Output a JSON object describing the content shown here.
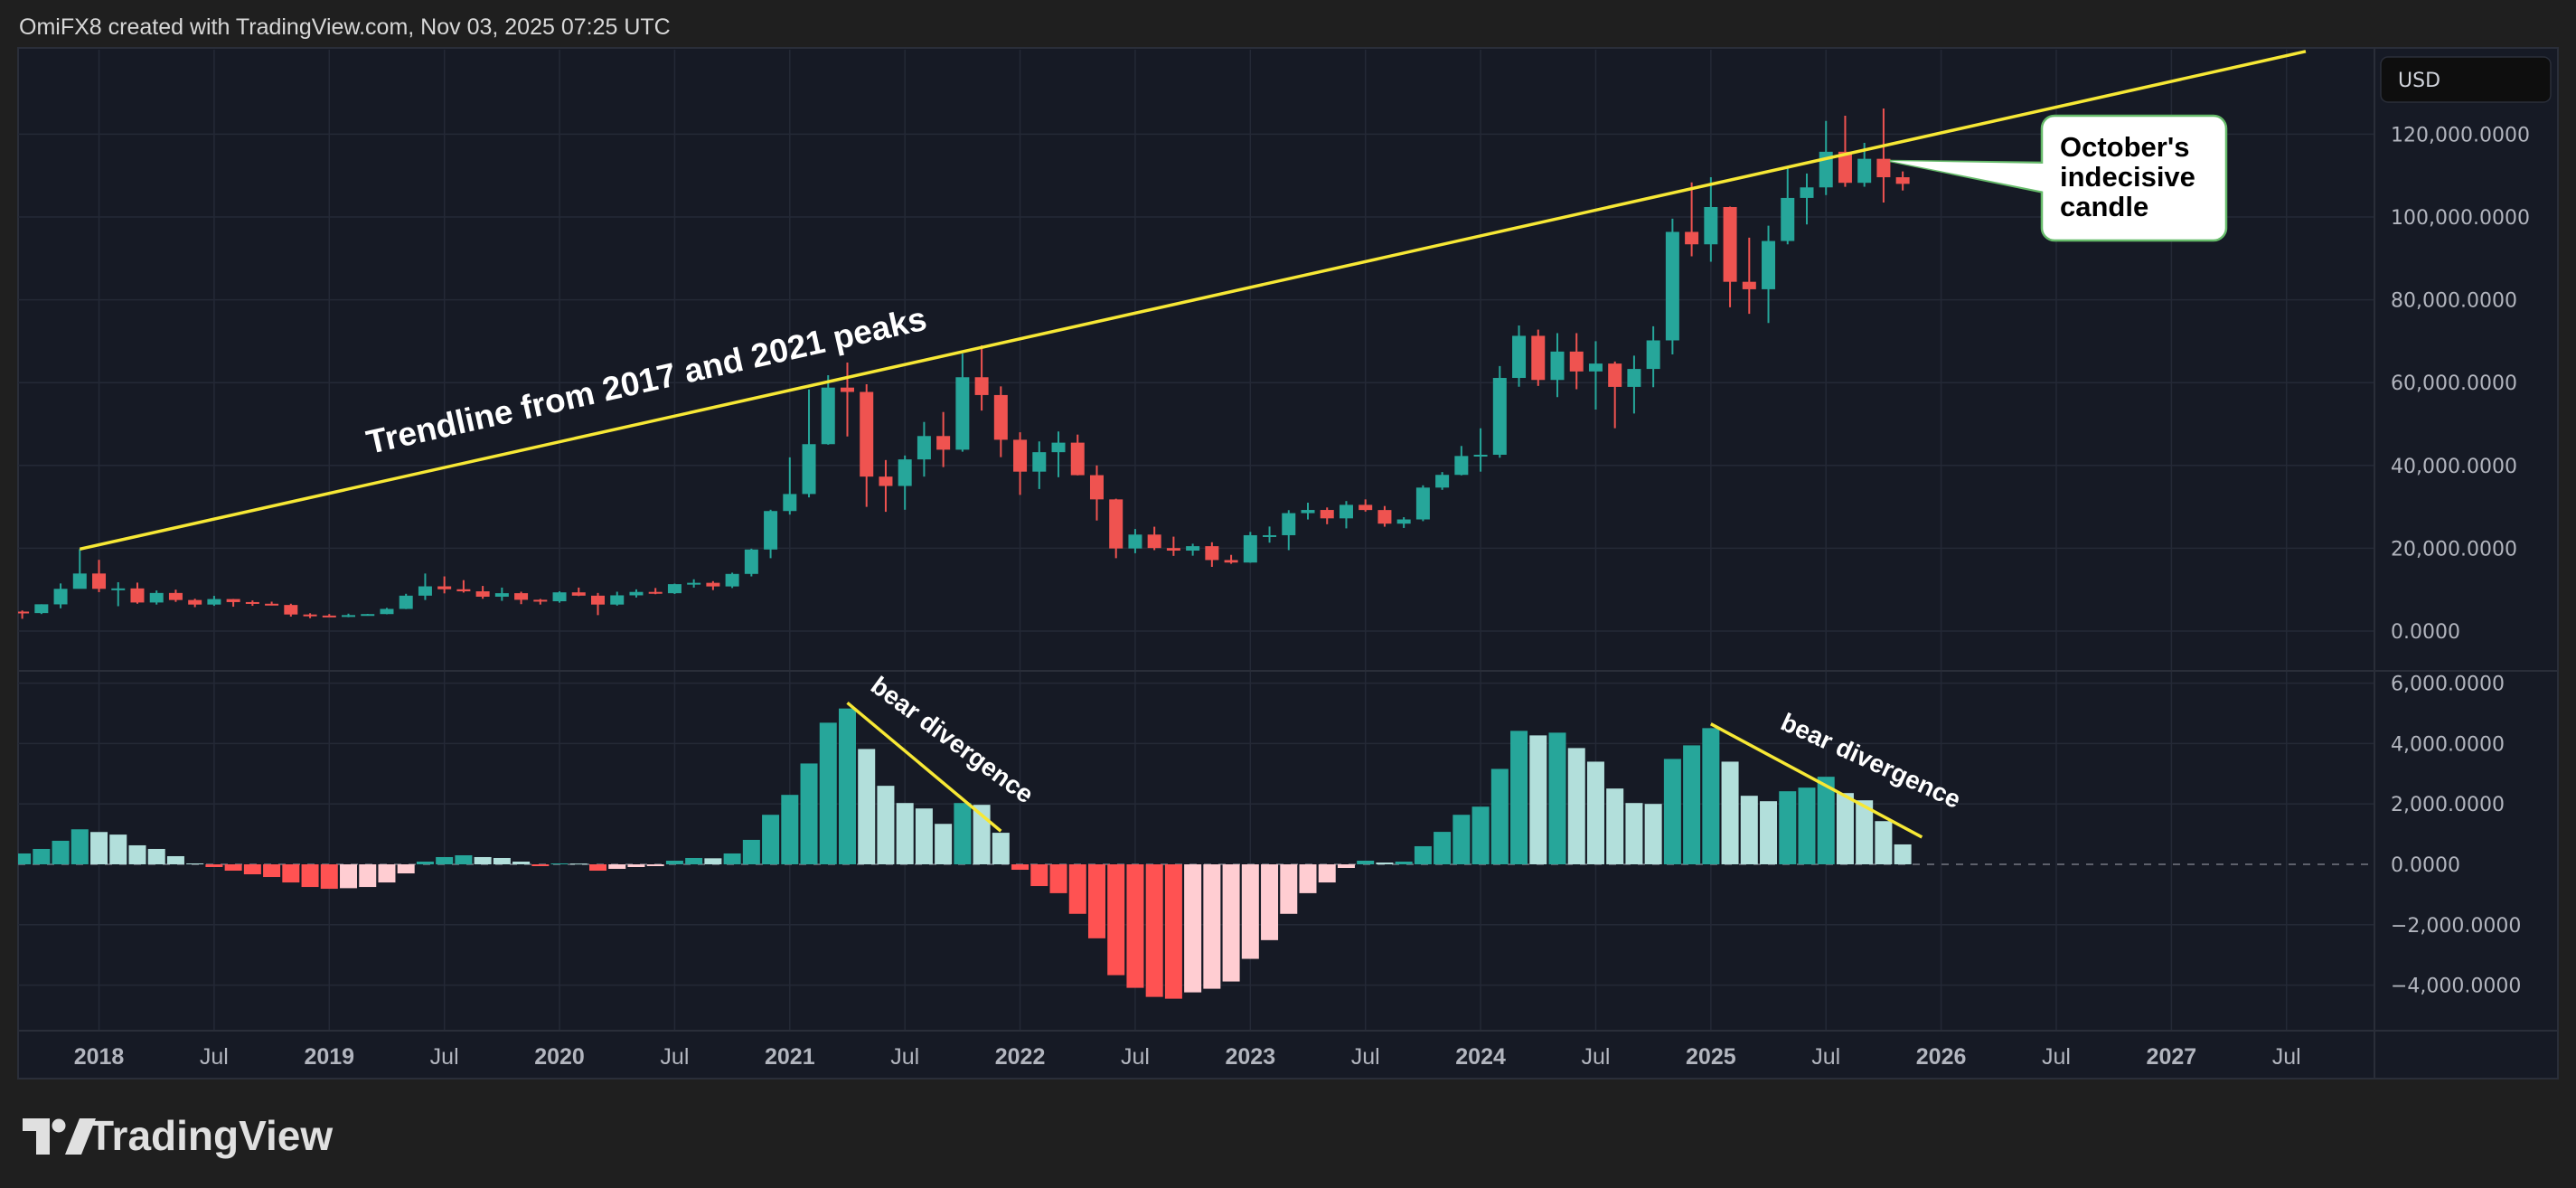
{
  "header": {
    "text": "OmiFX8 created with TradingView.com, Nov 03, 2025 07:25 UTC"
  },
  "logo": {
    "text": "TradingView"
  },
  "colors": {
    "background": "#161a25",
    "page": "#1f1f1f",
    "grid": "#242936",
    "up": "#26a69a",
    "down": "#ef5350",
    "hist_up_strong": "#26a69a",
    "hist_up_weak": "#b2dfdb",
    "hist_down_strong": "#ff5252",
    "hist_down_weak": "#ffcdd2",
    "trendline": "#f7e835",
    "callout_border": "#66bb6a"
  },
  "price_axis": {
    "currency": "USD",
    "labels": [
      {
        "value": 120000,
        "text": "120,000.0000"
      },
      {
        "value": 100000,
        "text": "100,000.0000"
      },
      {
        "value": 80000,
        "text": "80,000.0000"
      },
      {
        "value": 60000,
        "text": "60,000.0000"
      },
      {
        "value": 40000,
        "text": "40,000.0000"
      },
      {
        "value": 20000,
        "text": "20,000.0000"
      },
      {
        "value": 0,
        "text": "0.0000"
      }
    ]
  },
  "indicator_axis": {
    "labels": [
      {
        "value": 6000,
        "text": "6,000.0000"
      },
      {
        "value": 4000,
        "text": "4,000.0000"
      },
      {
        "value": 2000,
        "text": "2,000.0000"
      },
      {
        "value": 0,
        "text": "0.0000"
      },
      {
        "value": -2000,
        "text": "−2,000.0000"
      },
      {
        "value": -4000,
        "text": "−4,000.0000"
      }
    ]
  },
  "time_axis": {
    "labels": [
      {
        "date": "2018-01",
        "text": "2018",
        "bold": true
      },
      {
        "date": "2018-07",
        "text": "Jul",
        "bold": false
      },
      {
        "date": "2019-01",
        "text": "2019",
        "bold": true
      },
      {
        "date": "2019-07",
        "text": "Jul",
        "bold": false
      },
      {
        "date": "2020-01",
        "text": "2020",
        "bold": true
      },
      {
        "date": "2020-07",
        "text": "Jul",
        "bold": false
      },
      {
        "date": "2021-01",
        "text": "2021",
        "bold": true
      },
      {
        "date": "2021-07",
        "text": "Jul",
        "bold": false
      },
      {
        "date": "2022-01",
        "text": "2022",
        "bold": true
      },
      {
        "date": "2022-07",
        "text": "Jul",
        "bold": false
      },
      {
        "date": "2023-01",
        "text": "2023",
        "bold": true
      },
      {
        "date": "2023-07",
        "text": "Jul",
        "bold": false
      },
      {
        "date": "2024-01",
        "text": "2024",
        "bold": true
      },
      {
        "date": "2024-07",
        "text": "Jul",
        "bold": false
      },
      {
        "date": "2025-01",
        "text": "2025",
        "bold": true
      },
      {
        "date": "2025-07",
        "text": "Jul",
        "bold": false
      },
      {
        "date": "2026-01",
        "text": "2026",
        "bold": true
      },
      {
        "date": "2026-07",
        "text": "Jul",
        "bold": false
      },
      {
        "date": "2027-01",
        "text": "2027",
        "bold": true
      },
      {
        "date": "2027-07",
        "text": "Jul",
        "bold": false
      }
    ]
  },
  "annotations": {
    "trendline_label": "Trendline from 2017 and 2021 peaks",
    "callout_lines": [
      "October's",
      "indecisive",
      "candle"
    ],
    "bear_divergence_1": "bear divergence",
    "bear_divergence_2": "bear divergence"
  },
  "chart_data": [
    {
      "type": "candlestick",
      "interval": "monthly",
      "columns": [
        "date",
        "open",
        "high",
        "low",
        "close"
      ],
      "ylim": [
        0,
        140000
      ],
      "grid": true,
      "candles": [
        [
          "2017-09",
          4700,
          4980,
          2970,
          4340
        ],
        [
          "2017-10",
          4340,
          6470,
          4110,
          6470
        ],
        [
          "2017-11",
          6450,
          11500,
          5500,
          10200
        ],
        [
          "2017-12",
          10200,
          19800,
          10400,
          13900
        ],
        [
          "2018-01",
          13900,
          17200,
          9400,
          10200
        ],
        [
          "2018-02",
          10200,
          11800,
          6000,
          10300
        ],
        [
          "2018-03",
          10300,
          11700,
          6600,
          6900
        ],
        [
          "2018-04",
          6900,
          9800,
          6400,
          9200
        ],
        [
          "2018-05",
          9200,
          10000,
          7050,
          7500
        ],
        [
          "2018-06",
          7500,
          7800,
          5780,
          6400
        ],
        [
          "2018-07",
          6400,
          8500,
          6100,
          7730
        ],
        [
          "2018-08",
          7730,
          7760,
          5880,
          7000
        ],
        [
          "2018-09",
          7000,
          7400,
          6100,
          6600
        ],
        [
          "2018-10",
          6600,
          7100,
          6200,
          6300
        ],
        [
          "2018-11",
          6300,
          6600,
          3500,
          4000
        ],
        [
          "2018-12",
          4000,
          4300,
          3130,
          3740
        ],
        [
          "2019-01",
          3740,
          4100,
          3400,
          3460
        ],
        [
          "2019-02",
          3460,
          4200,
          3350,
          3850
        ],
        [
          "2019-03",
          3850,
          4150,
          3700,
          4100
        ],
        [
          "2019-04",
          4100,
          5600,
          4050,
          5350
        ],
        [
          "2019-05",
          5350,
          9000,
          5300,
          8550
        ],
        [
          "2019-06",
          8550,
          13900,
          7500,
          10800
        ],
        [
          "2019-07",
          10800,
          13200,
          9100,
          10100
        ],
        [
          "2019-08",
          10100,
          12300,
          9300,
          9600
        ],
        [
          "2019-09",
          9600,
          10900,
          7800,
          8300
        ],
        [
          "2019-10",
          8300,
          10500,
          7300,
          9150
        ],
        [
          "2019-11",
          9150,
          9500,
          6500,
          7550
        ],
        [
          "2019-12",
          7550,
          7750,
          6400,
          7200
        ],
        [
          "2020-01",
          7200,
          9600,
          6850,
          9350
        ],
        [
          "2020-02",
          9350,
          10500,
          8450,
          8550
        ],
        [
          "2020-03",
          8550,
          9200,
          3850,
          6400
        ],
        [
          "2020-04",
          6400,
          9500,
          6150,
          8630
        ],
        [
          "2020-05",
          8630,
          10070,
          8100,
          9450
        ],
        [
          "2020-06",
          9450,
          10400,
          8900,
          9140
        ],
        [
          "2020-07",
          9140,
          11450,
          8950,
          11330
        ],
        [
          "2020-08",
          11330,
          12500,
          10500,
          11650
        ],
        [
          "2020-09",
          11650,
          12050,
          9900,
          10780
        ],
        [
          "2020-10",
          10780,
          14100,
          10400,
          13800
        ],
        [
          "2020-11",
          13800,
          19900,
          13200,
          19700
        ],
        [
          "2020-12",
          19700,
          29300,
          17600,
          28990
        ],
        [
          "2021-01",
          28990,
          41950,
          28130,
          33100
        ],
        [
          "2021-02",
          33100,
          58350,
          32300,
          45140
        ],
        [
          "2021-03",
          45140,
          61800,
          45000,
          58800
        ],
        [
          "2021-04",
          58800,
          64850,
          47000,
          57750
        ],
        [
          "2021-05",
          57750,
          59600,
          30000,
          37300
        ],
        [
          "2021-06",
          37300,
          41300,
          28800,
          35040
        ],
        [
          "2021-07",
          35040,
          42400,
          29300,
          41460
        ],
        [
          "2021-08",
          41460,
          50500,
          37300,
          47100
        ],
        [
          "2021-09",
          47100,
          52900,
          39600,
          43800
        ],
        [
          "2021-10",
          43800,
          67000,
          43300,
          61300
        ],
        [
          "2021-11",
          61300,
          69000,
          53250,
          57000
        ],
        [
          "2021-12",
          57000,
          59100,
          42000,
          46200
        ],
        [
          "2022-01",
          46200,
          48000,
          32900,
          38500
        ],
        [
          "2022-02",
          38500,
          45800,
          34300,
          43200
        ],
        [
          "2022-03",
          43200,
          48200,
          37150,
          45500
        ],
        [
          "2022-04",
          45500,
          47450,
          37600,
          37650
        ],
        [
          "2022-05",
          37650,
          40000,
          26700,
          31800
        ],
        [
          "2022-06",
          31800,
          31950,
          17600,
          19950
        ],
        [
          "2022-07",
          19950,
          24650,
          18800,
          23300
        ],
        [
          "2022-08",
          23300,
          25200,
          19550,
          20050
        ],
        [
          "2022-09",
          20050,
          22800,
          18150,
          19430
        ],
        [
          "2022-10",
          19430,
          21100,
          18200,
          20500
        ],
        [
          "2022-11",
          20500,
          21450,
          15500,
          17150
        ],
        [
          "2022-12",
          17150,
          18400,
          16250,
          16550
        ],
        [
          "2023-01",
          16550,
          23950,
          16500,
          23150
        ],
        [
          "2023-02",
          23150,
          25250,
          21350,
          23150
        ],
        [
          "2023-03",
          23150,
          29200,
          19550,
          28480
        ],
        [
          "2023-04",
          28480,
          31000,
          26950,
          29250
        ],
        [
          "2023-05",
          29250,
          29850,
          25800,
          27220
        ],
        [
          "2023-06",
          27220,
          31400,
          24800,
          30480
        ],
        [
          "2023-07",
          30480,
          31800,
          28850,
          29230
        ],
        [
          "2023-08",
          29230,
          30200,
          25200,
          25940
        ],
        [
          "2023-09",
          25940,
          27500,
          24900,
          26960
        ],
        [
          "2023-10",
          26960,
          35200,
          26550,
          34650
        ],
        [
          "2023-11",
          34650,
          38400,
          34100,
          37720
        ],
        [
          "2023-12",
          37720,
          44700,
          37600,
          42280
        ],
        [
          "2024-01",
          42280,
          48970,
          38500,
          42580
        ],
        [
          "2024-02",
          42580,
          64000,
          41880,
          61130
        ],
        [
          "2024-03",
          61130,
          73800,
          59000,
          71300
        ],
        [
          "2024-04",
          71300,
          72800,
          59200,
          60640
        ],
        [
          "2024-05",
          60640,
          71950,
          56500,
          67500
        ],
        [
          "2024-06",
          67500,
          71950,
          58400,
          62700
        ],
        [
          "2024-07",
          62700,
          70000,
          53500,
          64600
        ],
        [
          "2024-08",
          64600,
          65100,
          49000,
          58970
        ],
        [
          "2024-09",
          58970,
          66500,
          52550,
          63300
        ],
        [
          "2024-10",
          63300,
          73600,
          58900,
          70200
        ],
        [
          "2024-11",
          70200,
          99600,
          66800,
          96400
        ],
        [
          "2024-12",
          96400,
          108350,
          90500,
          93400
        ],
        [
          "2025-01",
          93400,
          109600,
          89200,
          102400
        ],
        [
          "2025-02",
          102400,
          102500,
          78200,
          84350
        ],
        [
          "2025-03",
          84350,
          95000,
          76600,
          82550
        ],
        [
          "2025-04",
          82550,
          97900,
          74400,
          94200
        ],
        [
          "2025-05",
          94200,
          112000,
          93400,
          104600
        ],
        [
          "2025-06",
          104600,
          110500,
          98200,
          107150
        ],
        [
          "2025-07",
          107150,
          123200,
          105300,
          115750
        ],
        [
          "2025-08",
          115750,
          124450,
          107300,
          108250
        ],
        [
          "2025-09",
          108250,
          117900,
          107300,
          114050
        ],
        [
          "2025-10",
          114050,
          126200,
          103500,
          109600
        ],
        [
          "2025-11",
          109600,
          111000,
          106400,
          108000
        ]
      ],
      "trendline": [
        {
          "date": "2017-12",
          "price": 19800
        },
        {
          "date": "2027-08",
          "price": 140000
        }
      ]
    },
    {
      "type": "bar",
      "subtype": "histogram",
      "start": "2017-09",
      "interval": "monthly",
      "ylim": [
        -5000,
        6200
      ],
      "grid": true,
      "values": [
        360,
        510,
        780,
        1160,
        1070,
        985,
        630,
        510,
        270,
        30,
        -90,
        -210,
        -330,
        -420,
        -600,
        -750,
        -810,
        -790,
        -750,
        -600,
        -300,
        90,
        240,
        300,
        240,
        210,
        90,
        -60,
        30,
        25,
        -210,
        -150,
        -90,
        -60,
        120,
        210,
        200,
        360,
        810,
        1640,
        2300,
        3340,
        4690,
        5160,
        3820,
        2600,
        2030,
        1850,
        1340,
        2030,
        1970,
        1045,
        -180,
        -720,
        -955,
        -1640,
        -2450,
        -3670,
        -4090,
        -4390,
        -4450,
        -4240,
        -4120,
        -3880,
        -3130,
        -2510,
        -1640,
        -955,
        -600,
        -120,
        120,
        60,
        90,
        600,
        1075,
        1640,
        1910,
        3160,
        4420,
        4270,
        4360,
        3850,
        3400,
        2510,
        2030,
        2000,
        3490,
        3940,
        4510,
        3400,
        2270,
        2090,
        2420,
        2540,
        2900,
        2360,
        2120,
        1430,
        660
      ],
      "divergence_lines": [
        {
          "from": {
            "date": "2021-04",
            "value": 5350
          },
          "to": {
            "date": "2021-12",
            "value": 1100
          }
        },
        {
          "from": {
            "date": "2025-01",
            "value": 4650
          },
          "to": {
            "date": "2025-12",
            "value": 900
          }
        }
      ]
    }
  ]
}
